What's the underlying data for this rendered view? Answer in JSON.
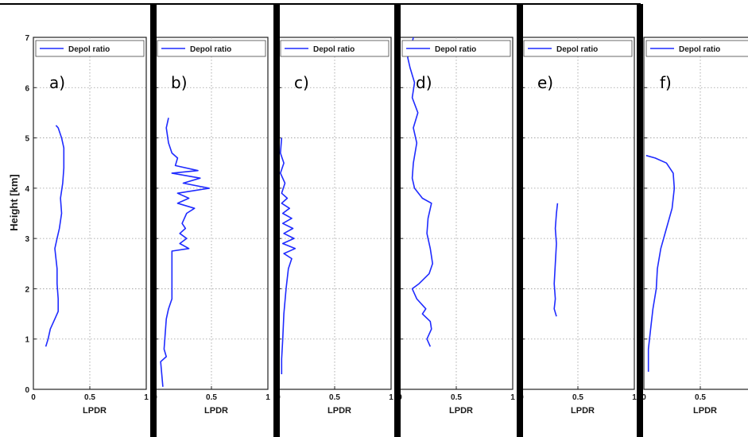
{
  "figure": {
    "y_axis_label": "Height [km]",
    "divider_color": "#000000",
    "series_color": "#1f2bff"
  },
  "chart_data": [
    {
      "type": "line",
      "panel_label": "a)",
      "xlabel": "LPDR",
      "ylabel": "Height [km]",
      "xlim": [
        0,
        1
      ],
      "ylim": [
        0,
        7
      ],
      "xticks": [
        "0",
        "0.5",
        "1"
      ],
      "yticks": [
        "0",
        "1",
        "2",
        "3",
        "4",
        "5",
        "6",
        "7"
      ],
      "grid": true,
      "legend_position": "top",
      "series": [
        {
          "name": "Depol ratio",
          "points": [
            [
              0.11,
              0.85
            ],
            [
              0.13,
              1.0
            ],
            [
              0.15,
              1.2
            ],
            [
              0.19,
              1.4
            ],
            [
              0.22,
              1.55
            ],
            [
              0.22,
              1.8
            ],
            [
              0.21,
              2.1
            ],
            [
              0.21,
              2.4
            ],
            [
              0.2,
              2.6
            ],
            [
              0.19,
              2.8
            ],
            [
              0.21,
              3.0
            ],
            [
              0.23,
              3.2
            ],
            [
              0.25,
              3.5
            ],
            [
              0.24,
              3.8
            ],
            [
              0.26,
              4.1
            ],
            [
              0.27,
              4.4
            ],
            [
              0.27,
              4.8
            ],
            [
              0.25,
              5.0
            ],
            [
              0.22,
              5.2
            ],
            [
              0.2,
              5.25
            ]
          ]
        }
      ]
    },
    {
      "type": "line",
      "panel_label": "b)",
      "xlabel": "LPDR",
      "ylabel": "",
      "xlim": [
        0,
        1
      ],
      "ylim": [
        0,
        7
      ],
      "xticks": [
        "0",
        "0.5",
        "1"
      ],
      "yticks": [
        "0",
        "1",
        "2",
        "3",
        "4",
        "5",
        "6",
        "7"
      ],
      "grid": true,
      "legend_position": "top",
      "series": [
        {
          "name": "Depol ratio",
          "points": [
            [
              0.07,
              0.05
            ],
            [
              0.06,
              0.3
            ],
            [
              0.05,
              0.55
            ],
            [
              0.1,
              0.65
            ],
            [
              0.08,
              0.8
            ],
            [
              0.09,
              1.1
            ],
            [
              0.1,
              1.4
            ],
            [
              0.12,
              1.6
            ],
            [
              0.15,
              1.8
            ],
            [
              0.15,
              2.75
            ],
            [
              0.3,
              2.8
            ],
            [
              0.22,
              2.9
            ],
            [
              0.28,
              3.0
            ],
            [
              0.22,
              3.1
            ],
            [
              0.27,
              3.2
            ],
            [
              0.24,
              3.3
            ],
            [
              0.28,
              3.5
            ],
            [
              0.35,
              3.6
            ],
            [
              0.2,
              3.7
            ],
            [
              0.3,
              3.8
            ],
            [
              0.2,
              3.9
            ],
            [
              0.48,
              4.0
            ],
            [
              0.25,
              4.1
            ],
            [
              0.4,
              4.2
            ],
            [
              0.15,
              4.3
            ],
            [
              0.38,
              4.35
            ],
            [
              0.18,
              4.45
            ],
            [
              0.2,
              4.6
            ],
            [
              0.15,
              4.7
            ],
            [
              0.12,
              4.9
            ],
            [
              0.1,
              5.2
            ],
            [
              0.12,
              5.4
            ]
          ]
        }
      ]
    },
    {
      "type": "line",
      "panel_label": "c)",
      "xlabel": "LPDR",
      "ylabel": "",
      "xlim": [
        0,
        1
      ],
      "ylim": [
        0,
        7
      ],
      "xticks": [
        "0",
        "0.5",
        "1"
      ],
      "yticks": [
        "0",
        "1",
        "2",
        "3",
        "4",
        "5",
        "6",
        "7"
      ],
      "grid": true,
      "legend_position": "top",
      "series": [
        {
          "name": "Depol ratio",
          "points": [
            [
              0.03,
              0.3
            ],
            [
              0.03,
              0.6
            ],
            [
              0.04,
              1.0
            ],
            [
              0.05,
              1.5
            ],
            [
              0.07,
              2.0
            ],
            [
              0.09,
              2.4
            ],
            [
              0.12,
              2.6
            ],
            [
              0.05,
              2.7
            ],
            [
              0.15,
              2.8
            ],
            [
              0.04,
              2.9
            ],
            [
              0.14,
              3.0
            ],
            [
              0.05,
              3.1
            ],
            [
              0.13,
              3.2
            ],
            [
              0.04,
              3.3
            ],
            [
              0.12,
              3.4
            ],
            [
              0.04,
              3.5
            ],
            [
              0.1,
              3.6
            ],
            [
              0.03,
              3.7
            ],
            [
              0.08,
              3.8
            ],
            [
              0.03,
              3.9
            ],
            [
              0.06,
              4.1
            ],
            [
              0.02,
              4.3
            ],
            [
              0.05,
              4.5
            ],
            [
              0.02,
              4.7
            ],
            [
              0.03,
              5.0
            ]
          ]
        }
      ]
    },
    {
      "type": "line",
      "panel_label": "d)",
      "xlabel": "LPDR",
      "ylabel": "",
      "xlim": [
        0,
        1
      ],
      "ylim": [
        0,
        7
      ],
      "xticks": [
        "0",
        "0.5",
        "1"
      ],
      "yticks": [
        "0",
        "1",
        "2",
        "3",
        "4",
        "5",
        "6",
        "7"
      ],
      "grid": true,
      "legend_position": "top",
      "series": [
        {
          "name": "Depol ratio",
          "points": [
            [
              0.27,
              0.85
            ],
            [
              0.24,
              1.0
            ],
            [
              0.28,
              1.2
            ],
            [
              0.27,
              1.35
            ],
            [
              0.2,
              1.5
            ],
            [
              0.23,
              1.6
            ],
            [
              0.15,
              1.8
            ],
            [
              0.11,
              2.0
            ],
            [
              0.17,
              2.1
            ],
            [
              0.26,
              2.3
            ],
            [
              0.29,
              2.5
            ],
            [
              0.27,
              2.8
            ],
            [
              0.24,
              3.1
            ],
            [
              0.25,
              3.4
            ],
            [
              0.28,
              3.7
            ],
            [
              0.2,
              3.8
            ],
            [
              0.13,
              4.0
            ],
            [
              0.11,
              4.2
            ],
            [
              0.12,
              4.5
            ],
            [
              0.15,
              4.9
            ],
            [
              0.12,
              5.2
            ],
            [
              0.16,
              5.5
            ],
            [
              0.11,
              5.8
            ],
            [
              0.13,
              6.1
            ],
            [
              0.09,
              6.4
            ],
            [
              0.07,
              6.6
            ],
            [
              0.1,
              6.8
            ],
            [
              0.12,
              7.0
            ]
          ]
        }
      ]
    },
    {
      "type": "line",
      "panel_label": "e)",
      "xlabel": "LPDR",
      "ylabel": "",
      "xlim": [
        0,
        1
      ],
      "ylim": [
        0,
        7
      ],
      "xticks": [
        "0",
        "0.5",
        "1"
      ],
      "yticks": [
        "0",
        "1",
        "2",
        "3",
        "4",
        "5",
        "6",
        "7"
      ],
      "grid": true,
      "legend_position": "top",
      "series": [
        {
          "name": "Depol ratio",
          "points": [
            [
              0.31,
              1.45
            ],
            [
              0.29,
              1.6
            ],
            [
              0.3,
              1.8
            ],
            [
              0.29,
              2.1
            ],
            [
              0.3,
              2.5
            ],
            [
              0.31,
              2.9
            ],
            [
              0.3,
              3.2
            ],
            [
              0.31,
              3.5
            ],
            [
              0.32,
              3.7
            ]
          ]
        }
      ]
    },
    {
      "type": "line",
      "panel_label": "f)",
      "xlabel": "LPDR",
      "ylabel": "",
      "xlim": [
        0,
        1
      ],
      "ylim": [
        0,
        7
      ],
      "xticks": [
        "0",
        "0.5",
        "1"
      ],
      "yticks": [
        "0",
        "1",
        "2",
        "3",
        "4",
        "5",
        "6",
        "7"
      ],
      "grid": true,
      "legend_position": "top",
      "series": [
        {
          "name": "Depol ratio",
          "points": [
            [
              0.04,
              0.35
            ],
            [
              0.04,
              0.8
            ],
            [
              0.06,
              1.2
            ],
            [
              0.08,
              1.6
            ],
            [
              0.11,
              2.0
            ],
            [
              0.12,
              2.4
            ],
            [
              0.15,
              2.8
            ],
            [
              0.2,
              3.2
            ],
            [
              0.25,
              3.6
            ],
            [
              0.27,
              4.0
            ],
            [
              0.26,
              4.3
            ],
            [
              0.2,
              4.5
            ],
            [
              0.1,
              4.6
            ],
            [
              0.02,
              4.65
            ]
          ]
        }
      ]
    }
  ]
}
